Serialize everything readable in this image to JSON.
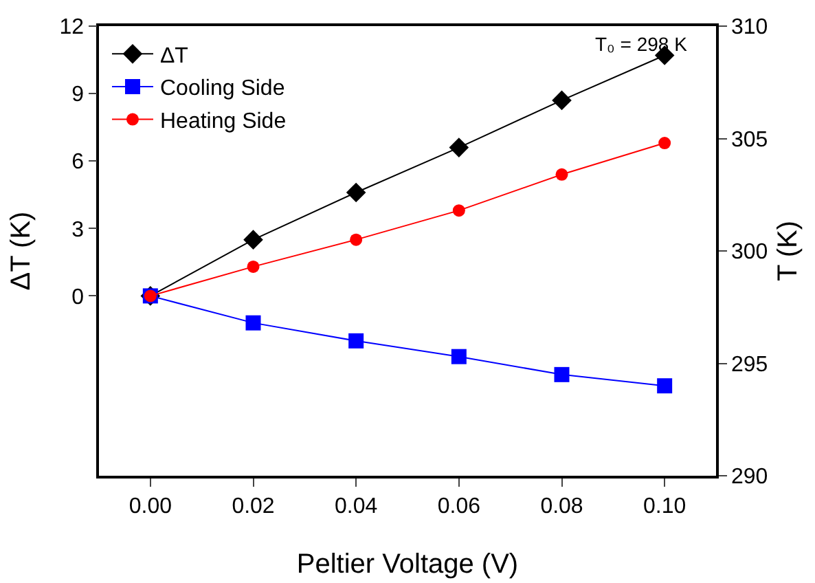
{
  "chart_data": {
    "type": "line",
    "xlabel": "Peltier Voltage (V)",
    "ylabel": "ΔT (K)",
    "y2label": "T (K)",
    "x": [
      0,
      0.02,
      0.04,
      0.06,
      0.08,
      0.1
    ],
    "xlim": [
      -0.01,
      0.11
    ],
    "xticks": [
      {
        "value": 0,
        "label": "0.00"
      },
      {
        "value": 0.02,
        "label": "0.02"
      },
      {
        "value": 0.04,
        "label": "0.04"
      },
      {
        "value": 0.06,
        "label": "0.06"
      },
      {
        "value": 0.08,
        "label": "0.08"
      },
      {
        "value": 0.1,
        "label": "0.10"
      }
    ],
    "ylim": [
      -8,
      12
    ],
    "yticks": [
      0,
      3,
      6,
      9,
      12
    ],
    "y2lim": [
      290,
      310
    ],
    "y2ticks": [
      290,
      295,
      300,
      305,
      310
    ],
    "series": [
      {
        "name": "ΔT",
        "color": "#000000",
        "marker": "diamond",
        "values": [
          0,
          2.5,
          4.6,
          6.6,
          8.7,
          10.7
        ]
      },
      {
        "name": "Cooling Side",
        "color": "#0000ff",
        "marker": "square",
        "axis": "y2",
        "values": [
          298,
          296.8,
          296,
          295.3,
          294.5,
          294
        ]
      },
      {
        "name": "Heating Side",
        "color": "#ff0000",
        "marker": "circle",
        "axis": "y2",
        "values": [
          298,
          299.3,
          300.5,
          301.8,
          303.4,
          304.8
        ]
      }
    ],
    "annotations": [
      "T₀ = 298 K"
    ],
    "legend": "top left",
    "grid": false,
    "line_style": "solid"
  }
}
